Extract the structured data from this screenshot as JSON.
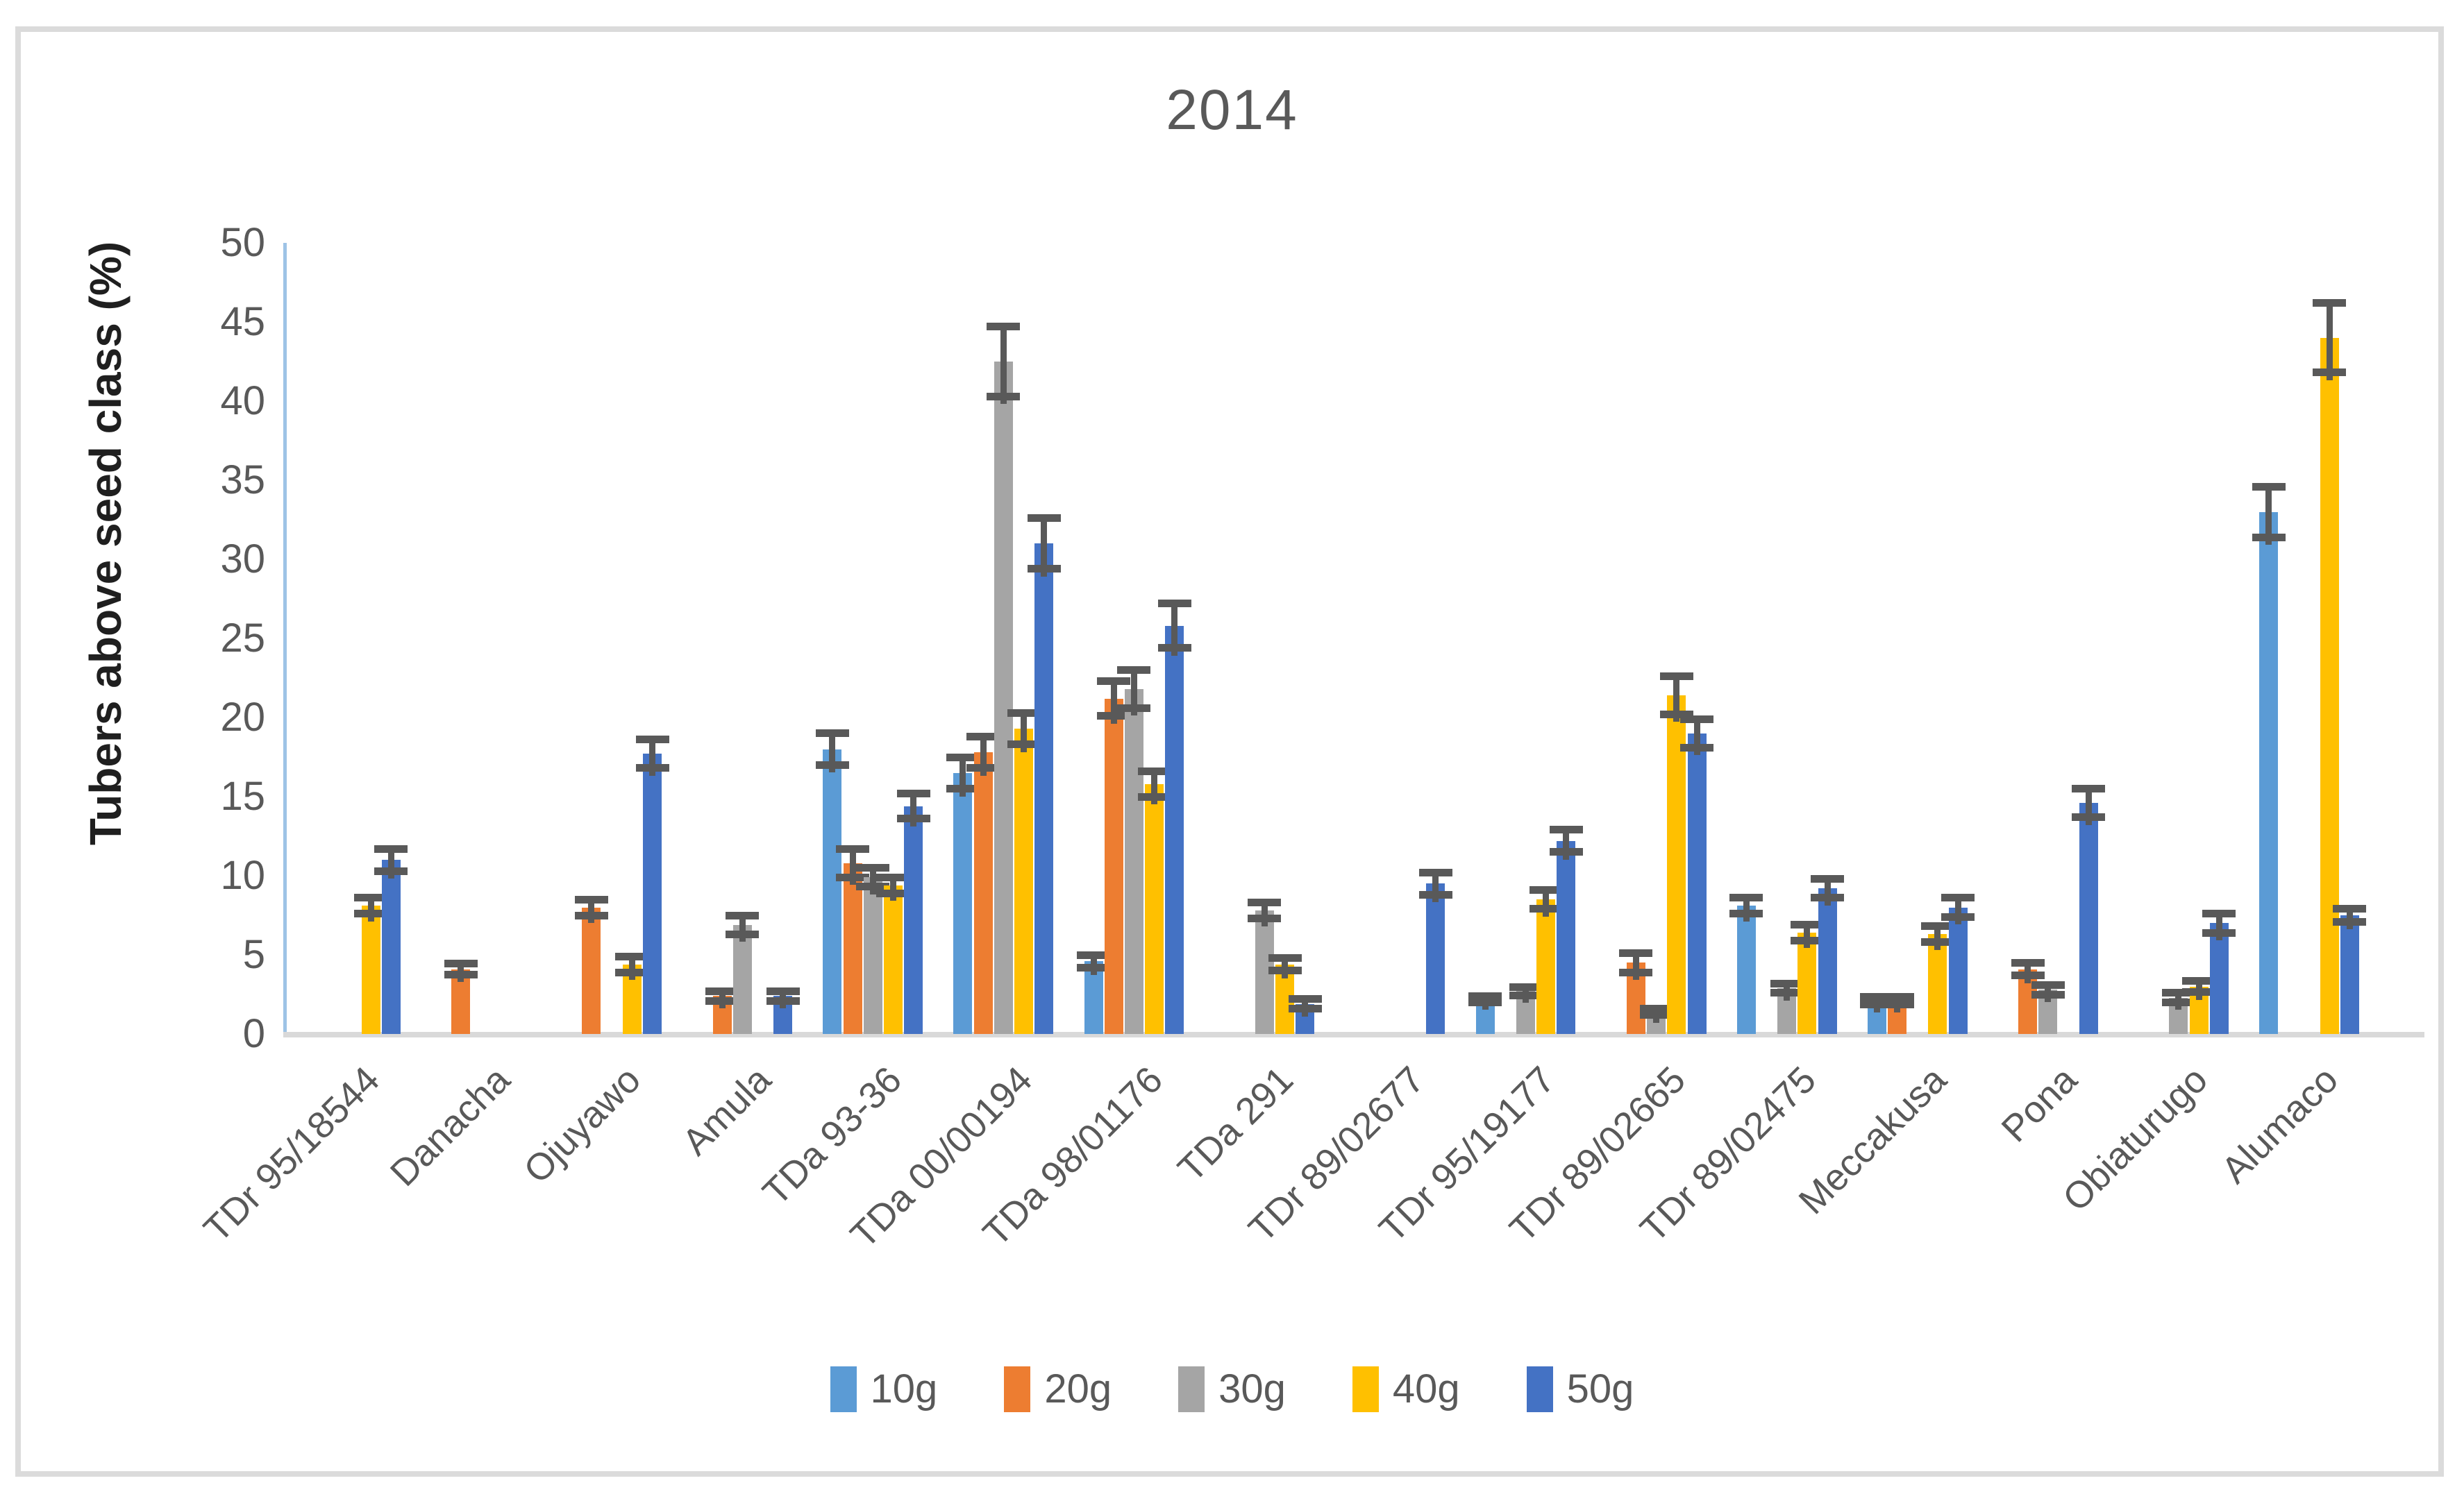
{
  "page": {
    "background": "#ffffff",
    "frame_border_color": "#dbdbdb"
  },
  "chart_data": {
    "type": "bar",
    "title": "2014",
    "xlabel": "",
    "ylabel": "Tubers above seed class (%)",
    "ylim": [
      0,
      50
    ],
    "ytick_step": 5,
    "yticks": [
      0,
      5,
      10,
      15,
      20,
      25,
      30,
      35,
      40,
      45,
      50
    ],
    "grid": false,
    "legend_position": "bottom-center",
    "error_bars": true,
    "error_bar_color": "#595959",
    "y_axis_line_color": "#9dc3e6",
    "x_axis_line_color": "#d9d9d9",
    "categories": [
      "TDr 95/18544",
      "Danacha",
      "Ojuyawo",
      "Amula",
      "TDa 93-36",
      "TDa 00/00194",
      "TDa 98/01176",
      "TDa 291",
      "TDr 89/02677",
      "TDr 95/19177",
      "TDr 89/02665",
      "TDr 89/02475",
      "Meccakusa",
      "Pona",
      "Obiaturugo",
      "Alumaco"
    ],
    "series": [
      {
        "name": "10g",
        "color": "#5B9BD5",
        "values": [
          null,
          null,
          null,
          null,
          18.0,
          16.5,
          4.6,
          null,
          null,
          2.2,
          null,
          8.1,
          2.1,
          null,
          null,
          33.0
        ],
        "errors": [
          null,
          null,
          null,
          null,
          1.0,
          1.0,
          0.4,
          null,
          null,
          0.2,
          null,
          0.5,
          0.25,
          null,
          null,
          1.6
        ]
      },
      {
        "name": "20g",
        "color": "#ED7D31",
        "values": [
          null,
          4.1,
          8.0,
          2.4,
          10.8,
          17.8,
          21.2,
          null,
          null,
          null,
          4.5,
          null,
          2.1,
          4.1,
          null,
          null
        ],
        "errors": [
          null,
          0.35,
          0.5,
          0.3,
          0.9,
          1.0,
          1.1,
          null,
          null,
          null,
          0.6,
          null,
          0.25,
          0.4,
          null,
          null
        ]
      },
      {
        "name": "30g",
        "color": "#A5A5A5",
        "values": [
          null,
          null,
          null,
          6.9,
          9.9,
          42.5,
          21.8,
          7.8,
          null,
          2.7,
          1.4,
          2.9,
          null,
          2.8,
          2.3,
          null
        ],
        "errors": [
          null,
          null,
          null,
          0.6,
          0.6,
          2.2,
          1.2,
          0.5,
          null,
          0.25,
          0.2,
          0.3,
          null,
          0.3,
          0.3,
          null
        ]
      },
      {
        "name": "40g",
        "color": "#FFC000",
        "values": [
          8.1,
          null,
          4.4,
          null,
          9.4,
          19.3,
          15.8,
          4.4,
          null,
          8.5,
          21.4,
          6.4,
          6.3,
          null,
          3.0,
          44.0
        ],
        "errors": [
          0.5,
          null,
          0.5,
          null,
          0.5,
          1.0,
          0.8,
          0.4,
          null,
          0.6,
          1.2,
          0.5,
          0.5,
          null,
          0.35,
          2.2
        ]
      },
      {
        "name": "50g",
        "color": "#4472C4",
        "values": [
          11.0,
          null,
          17.7,
          2.4,
          14.4,
          31.0,
          25.8,
          1.9,
          9.5,
          12.2,
          19.0,
          9.2,
          8.0,
          14.6,
          7.0,
          7.5
        ],
        "errors": [
          0.7,
          null,
          0.9,
          0.3,
          0.8,
          1.6,
          1.4,
          0.3,
          0.7,
          0.7,
          0.9,
          0.6,
          0.6,
          0.9,
          0.6,
          0.4
        ]
      }
    ]
  }
}
